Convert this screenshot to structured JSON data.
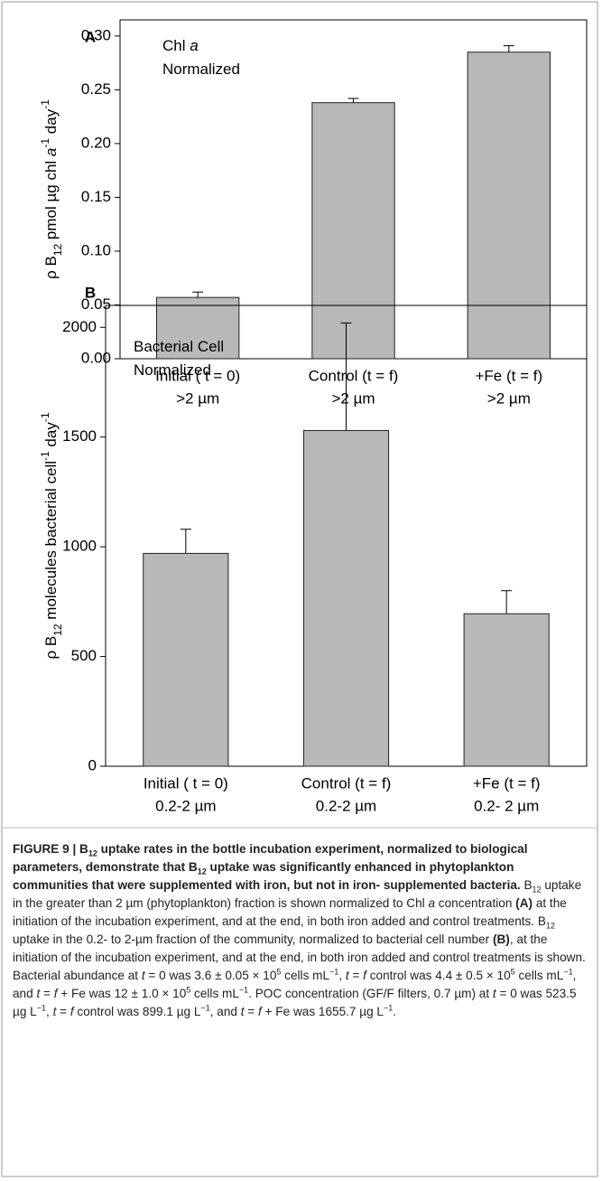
{
  "chart_data": [
    {
      "type": "bar",
      "panel": "A",
      "ylabel": [
        "ρ B",
        "12",
        " pmol µg chl ",
        "a",
        "-1",
        " day",
        "-1"
      ],
      "annotation": [
        [
          "Chl ",
          "a"
        ],
        [
          "Normalized"
        ]
      ],
      "categories": [
        [
          "Initial ( t = 0)",
          ">2 µm"
        ],
        [
          "Control (t = f)",
          ">2 µm"
        ],
        [
          "+Fe (t = f)",
          ">2 µm"
        ]
      ],
      "values": [
        0.057,
        0.238,
        0.285
      ],
      "errors": [
        0.005,
        0.004,
        0.006
      ],
      "color": "#b8b8b8",
      "ylim": [
        0,
        0.315
      ],
      "yticks": [
        {
          "value": 0,
          "label": "0.00"
        },
        {
          "value": 0.05,
          "label": "0.05"
        },
        {
          "value": 0.1,
          "label": "0.10"
        },
        {
          "value": 0.15,
          "label": "0.15"
        },
        {
          "value": 0.2,
          "label": "0.20"
        },
        {
          "value": 0.25,
          "label": "0.25"
        },
        {
          "value": 0.3,
          "label": "0.30"
        }
      ]
    },
    {
      "type": "bar",
      "panel": "B",
      "ylabel": [
        "ρ B",
        "12",
        " molecules bacterial cell",
        "-1",
        " day",
        "-1"
      ],
      "annotation": [
        [
          "Bacterial Cell"
        ],
        [
          "Normalized"
        ]
      ],
      "categories": [
        [
          "Initial ( t = 0)",
          "0.2-2 µm"
        ],
        [
          "Control (t = f)",
          "0.2-2 µm"
        ],
        [
          "+Fe (t = f)",
          "0.2- 2 µm"
        ]
      ],
      "values": [
        970,
        1530,
        695
      ],
      "errors": [
        110,
        490,
        105
      ],
      "color": "#b8b8b8",
      "ylim": [
        0,
        2100
      ],
      "yticks": [
        0,
        500,
        1000,
        1500,
        2000
      ]
    }
  ],
  "caption": [
    "FIGURE 9 | B",
    "12",
    " uptake rates in the bottle incubation experiment, normalized to biological parameters, demonstrate that B",
    "12",
    " uptake was significantly enhanced in phytoplankton communities that were supplemented with iron, but not in iron- supplemented bacteria.",
    " B",
    "12",
    " uptake in the greater than 2 µm (phytoplankton) fraction is shown normalized to Chl ",
    "a",
    " concentration ",
    "(A)",
    " at the initiation of the incubation experiment, and at the end, in both iron added and control treatments. B",
    "12",
    " uptake in the 0.2- to 2-µm fraction of the community, normalized to bacterial cell number ",
    "(B)",
    ", at the initiation of the incubation experiment, and at the end, in both iron added and control treatments is shown. Bacterial abundance at ",
    "t",
    " = 0 was 3.6 ± 0.05 × 10",
    "5",
    " cells mL",
    "−1",
    ", ",
    "t",
    " = ",
    "f",
    " control was 4.4 ± 0.5 × 10",
    "5",
    " cells mL",
    "−1",
    ", and ",
    "t",
    " = ",
    "f",
    " + Fe was 12 ± 1.0 × 10",
    "5",
    " cells mL",
    "−1",
    ". POC concentration (GF/F filters, 0.7 µm) at ",
    "t",
    " = 0 was 523.5 µg L",
    "−1",
    ", ",
    "t",
    " = ",
    "f",
    " control was 899.1 µg L",
    "−1",
    ", and ",
    "t",
    " = ",
    "f",
    " + Fe was 1655.7 µg L",
    "−1",
    "."
  ]
}
